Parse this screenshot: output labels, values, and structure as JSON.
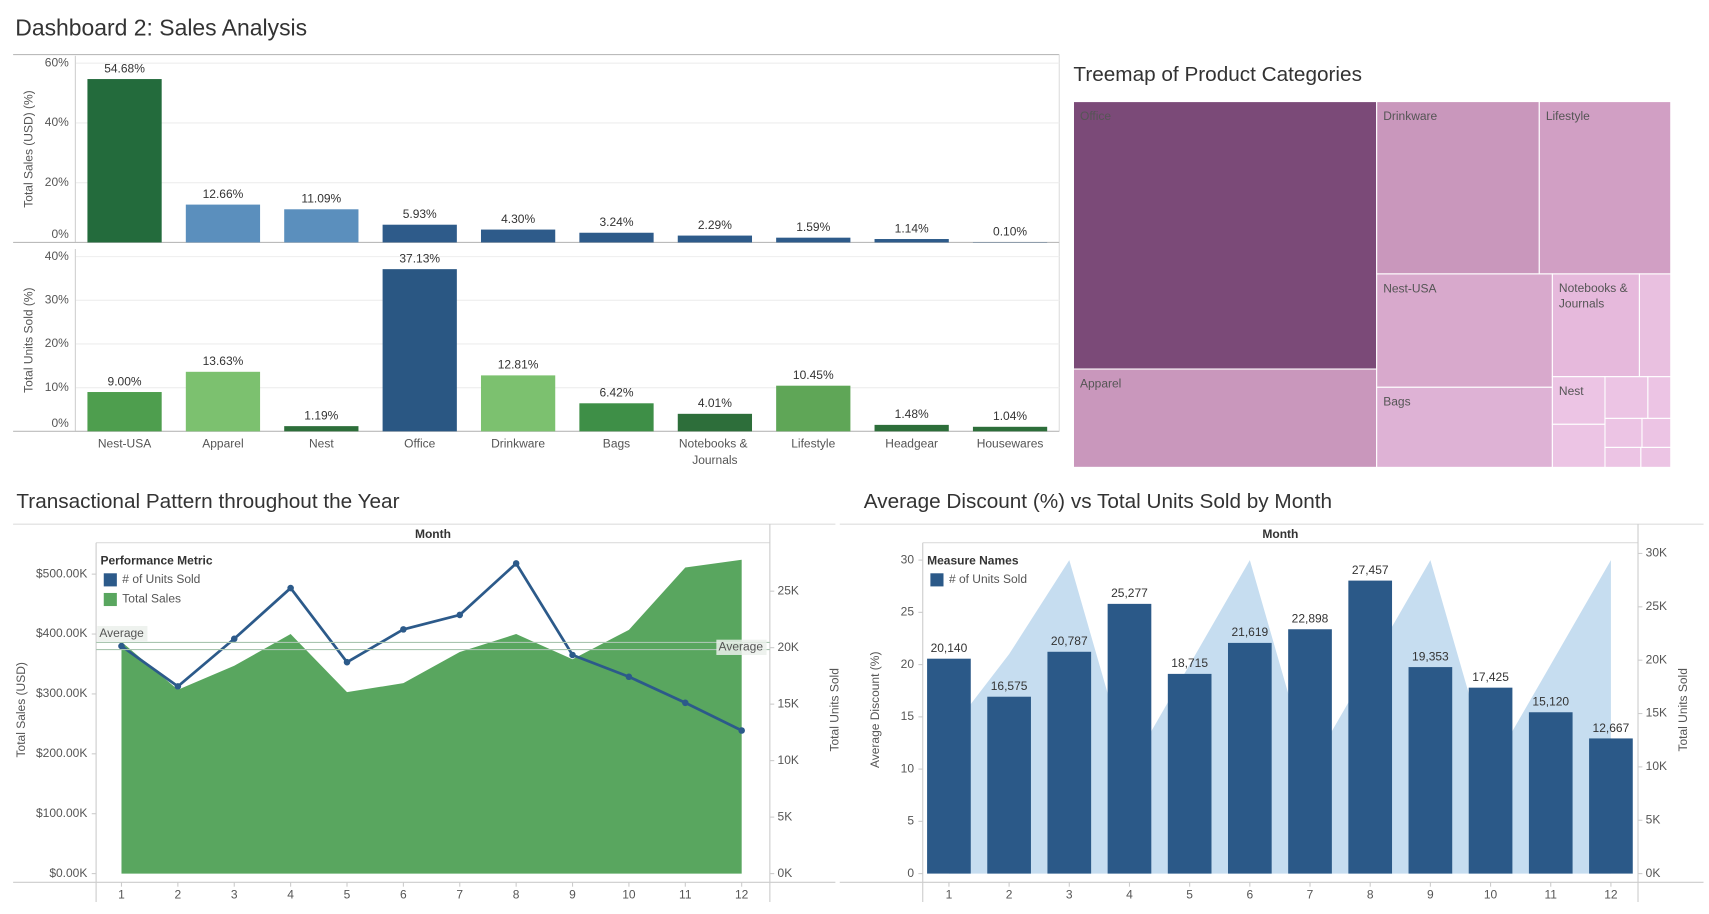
{
  "title": "Dashboard 2: Sales Analysis",
  "chart_data": [
    {
      "type": "bar",
      "y_label": "Total Sales (USD) (%)",
      "values": [
        54.68,
        12.66,
        11.09,
        5.93,
        4.3,
        3.24,
        2.29,
        1.59,
        1.14,
        0.1
      ],
      "value_labels": [
        "54.68%",
        "12.66%",
        "11.09%",
        "5.93%",
        "4.30%",
        "3.24%",
        "2.29%",
        "1.59%",
        "1.14%",
        "0.10%"
      ],
      "colors": [
        "#236b3c",
        "#5b8fbd",
        "#5b8fbd",
        "#2e5b8a",
        "#2e5b8a",
        "#2e5b8a",
        "#2e5b8a",
        "#2e5b8a",
        "#2e5b8a",
        "#2e5b8a"
      ],
      "ylim": [
        0,
        62.5
      ],
      "yticks": [
        {
          "value": 0,
          "label": "0%"
        },
        {
          "value": 20,
          "label": "20%"
        },
        {
          "value": 40,
          "label": "40%"
        },
        {
          "value": 60,
          "label": "60%"
        }
      ]
    },
    {
      "type": "bar",
      "y_label": "Total Units Sold (%)",
      "categories": [
        "Nest-USA",
        "Apparel",
        "Nest",
        "Office",
        "Drinkware",
        "Bags",
        "Notebooks & Journals",
        "Lifestyle",
        "Headgear",
        "Housewares"
      ],
      "values": [
        9.0,
        13.63,
        1.19,
        37.13,
        12.81,
        6.42,
        4.01,
        10.45,
        1.48,
        1.04
      ],
      "value_labels": [
        "9.00%",
        "13.63%",
        "1.19%",
        "37.13%",
        "12.81%",
        "6.42%",
        "4.01%",
        "10.45%",
        "1.48%",
        "1.04%"
      ],
      "colors": [
        "#4e9e4e",
        "#7cc16f",
        "#2d6e3a",
        "#2a5783",
        "#7cc16f",
        "#3e8f47",
        "#2d6e3a",
        "#5fa657",
        "#2d6e3a",
        "#2d6e3a"
      ],
      "ylim": [
        0,
        41.75
      ],
      "yticks": [
        {
          "value": 0,
          "label": "0%"
        },
        {
          "value": 10,
          "label": "10%"
        },
        {
          "value": 20,
          "label": "20%"
        },
        {
          "value": 30,
          "label": "30%"
        },
        {
          "value": 40,
          "label": "40%"
        }
      ]
    },
    {
      "type": "treemap",
      "title": "Treemap of Product Categories",
      "labels": [
        "Office",
        "Apparel",
        "Drinkware",
        "Lifestyle",
        "Nest-USA",
        "Bags",
        "Notebooks & Journals",
        null,
        "Nest",
        null,
        null,
        null,
        null,
        null,
        null,
        null
      ],
      "values": [
        68,
        25,
        23.5,
        19,
        16.7,
        11.8,
        7.5,
        2.7,
        2.1,
        1.5,
        0.8,
        1.9,
        0.9,
        0.7,
        0.6,
        0.5
      ],
      "colors": [
        "#7b4a78",
        "#c997bc",
        "#c997bc",
        "#d19fc4",
        "#d8a9cc",
        "#deb2d5",
        "#e6b9dc",
        "#e9c0e0",
        "#ecc4e4",
        "#ecc4e4",
        "#ecc4e4",
        "#ecc4e4",
        "#ecc4e4",
        "#ecc4e4",
        "#ecc4e4",
        "#ecc4e4"
      ]
    },
    {
      "type": "combo",
      "title": "Transactional Pattern throughout the Year",
      "x_header": "Month",
      "x": [
        1,
        2,
        3,
        4,
        5,
        6,
        7,
        8,
        9,
        10,
        11,
        12
      ],
      "xlim": [
        0.55,
        12.5
      ],
      "xticks": [
        1,
        2,
        3,
        4,
        5,
        6,
        7,
        8,
        9,
        10,
        11,
        12
      ],
      "y_label": "Total Sales (USD)",
      "y2_label": "Total Units Sold",
      "ylim": [
        0,
        547000
      ],
      "yticks": [
        {
          "value": 0,
          "label": "$0.00K"
        },
        {
          "value": 100000,
          "label": "$100.00K"
        },
        {
          "value": 200000,
          "label": "$200.00K"
        },
        {
          "value": 300000,
          "label": "$300.00K"
        },
        {
          "value": 400000,
          "label": "$400.00K"
        },
        {
          "value": 500000,
          "label": "$500.00K"
        }
      ],
      "y2lim": [
        0,
        29000
      ],
      "y2ticks": [
        {
          "value": 0,
          "label": "0K"
        },
        {
          "value": 5000,
          "label": "5K"
        },
        {
          "value": 10000,
          "label": "10K"
        },
        {
          "value": 15000,
          "label": "15K"
        },
        {
          "value": 20000,
          "label": "20K"
        },
        {
          "value": 25000,
          "label": "25K"
        }
      ],
      "legend_title": "Performance Metric",
      "series": [
        {
          "name": "# of Units Sold",
          "type": "line",
          "axis": "y2",
          "color": "#2c5a8a",
          "values": [
            20140,
            16575,
            20787,
            25277,
            18715,
            21619,
            22898,
            27457,
            19353,
            17425,
            15120,
            12667
          ]
        },
        {
          "name": "Total Sales",
          "type": "area",
          "color": "#59a65f",
          "values": [
            387000,
            307000,
            347000,
            400000,
            303000,
            318000,
            370000,
            400000,
            358000,
            407000,
            511000,
            524000
          ]
        }
      ],
      "reference_lines": [
        {
          "label": "Average",
          "axis": "y",
          "value": 386000
        },
        {
          "label": "Average",
          "axis": "y2",
          "value": 19836
        }
      ]
    },
    {
      "type": "combo",
      "title": "Average Discount (%) vs Total Units Sold by Month",
      "x_header": "Month",
      "x": [
        1,
        2,
        3,
        4,
        5,
        6,
        7,
        8,
        9,
        10,
        11,
        12
      ],
      "xlim": [
        0.565,
        12.45
      ],
      "xticks": [
        1,
        2,
        3,
        4,
        5,
        6,
        7,
        8,
        9,
        10,
        11,
        12
      ],
      "y_label": "Average Discount (%)",
      "y2_label": "Total Units Sold",
      "ylim": [
        0,
        31.35
      ],
      "yticks": [
        0,
        5,
        10,
        15,
        20,
        25,
        30
      ],
      "y2lim": [
        0,
        30700
      ],
      "y2ticks": [
        {
          "value": 0,
          "label": "0K"
        },
        {
          "value": 5000,
          "label": "5K"
        },
        {
          "value": 10000,
          "label": "10K"
        },
        {
          "value": 15000,
          "label": "15K"
        },
        {
          "value": 20000,
          "label": "20K"
        },
        {
          "value": 25000,
          "label": "25K"
        },
        {
          "value": 30000,
          "label": "30K"
        }
      ],
      "legend_title": "Measure Names",
      "series": [
        {
          "name": "# of Units Sold",
          "type": "bar",
          "axis": "y2",
          "color": "#2b5988",
          "values": [
            20140,
            16575,
            20787,
            25277,
            18715,
            21619,
            22898,
            27457,
            19353,
            17425,
            15120,
            12667
          ],
          "value_labels": [
            "20,140",
            "16,575",
            "20,787",
            "25,277",
            "18,715",
            "21,619",
            "22,898",
            "27,457",
            "19,353",
            "17,425",
            "15,120",
            "12,667"
          ]
        },
        {
          "type": "area",
          "axis": "y",
          "color": "#c6ddf0",
          "values": [
            13.5,
            21,
            30,
            10,
            20,
            30,
            10,
            20,
            30,
            10,
            20,
            30
          ]
        }
      ]
    }
  ]
}
